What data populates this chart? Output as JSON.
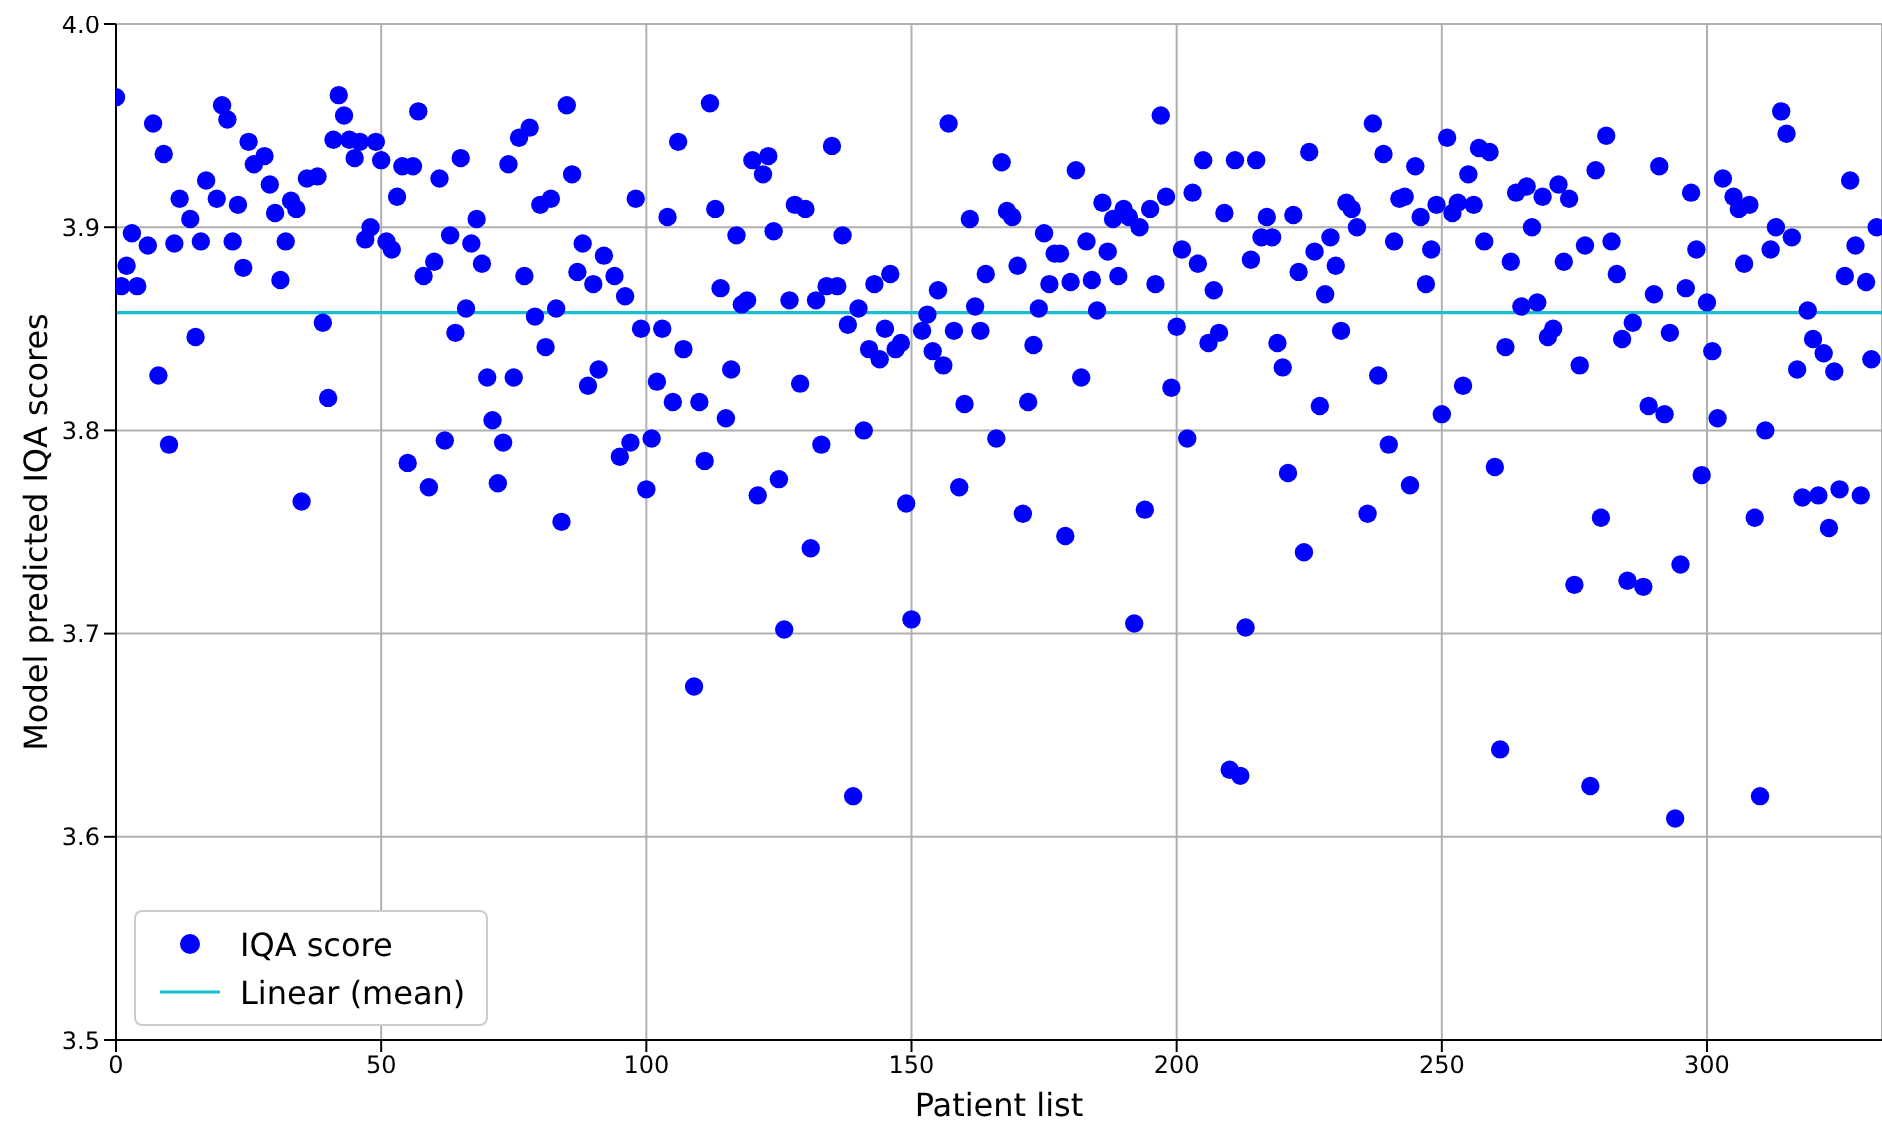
{
  "chart_data": {
    "type": "scatter",
    "xlabel": "Patient list",
    "ylabel": "Model predicted IQA scores",
    "xlim": [
      0,
      333
    ],
    "ylim": [
      3.5,
      4.0
    ],
    "xticks": [
      0,
      50,
      100,
      150,
      200,
      250,
      300
    ],
    "yticks": [
      3.5,
      3.6,
      3.7,
      3.8,
      3.9,
      {
        "value": 4,
        "label": "4.0"
      }
    ],
    "grid": true,
    "legend": "bottom left",
    "marker": "circle",
    "series": [
      {
        "name": "IQA score",
        "type": "scatter",
        "color": "#0000ff",
        "x": [
          0,
          1,
          2,
          3,
          4,
          6,
          7,
          8,
          9,
          10,
          11,
          12,
          14,
          15,
          16,
          17,
          19,
          20,
          21,
          22,
          23,
          24,
          25,
          26,
          28,
          29,
          30,
          31,
          32,
          33,
          34,
          35,
          36,
          38,
          39,
          40,
          41,
          42,
          43,
          44,
          45,
          46,
          47,
          48,
          49,
          50,
          51,
          52,
          53,
          54,
          55,
          56,
          57,
          58,
          59,
          60,
          61,
          62,
          63,
          64,
          65,
          66,
          67,
          68,
          69,
          70,
          71,
          72,
          73,
          74,
          75,
          76,
          77,
          78,
          79,
          80,
          81,
          82,
          83,
          84,
          85,
          86,
          87,
          88,
          89,
          90,
          91,
          92,
          94,
          95,
          96,
          97,
          98,
          99,
          100,
          101,
          102,
          103,
          104,
          105,
          106,
          107,
          109,
          110,
          111,
          112,
          113,
          114,
          115,
          116,
          117,
          118,
          119,
          120,
          121,
          122,
          123,
          124,
          125,
          126,
          127,
          128,
          129,
          130,
          131,
          132,
          133,
          134,
          135,
          136,
          137,
          138,
          139,
          140,
          141,
          142,
          143,
          144,
          145,
          146,
          147,
          148,
          149,
          150,
          152,
          153,
          154,
          155,
          156,
          157,
          158,
          159,
          160,
          161,
          162,
          163,
          164,
          166,
          167,
          168,
          169,
          170,
          171,
          172,
          173,
          174,
          175,
          176,
          177,
          178,
          179,
          180,
          181,
          182,
          183,
          184,
          185,
          186,
          187,
          188,
          189,
          190,
          191,
          192,
          193,
          194,
          195,
          196,
          197,
          198,
          199,
          200,
          201,
          202,
          203,
          204,
          205,
          206,
          207,
          208,
          209,
          210,
          211,
          212,
          213,
          214,
          215,
          216,
          217,
          218,
          219,
          220,
          221,
          222,
          223,
          224,
          225,
          226,
          227,
          228,
          229,
          230,
          231,
          232,
          233,
          234,
          236,
          237,
          238,
          239,
          240,
          241,
          242,
          243,
          244,
          245,
          246,
          247,
          248,
          249,
          250,
          251,
          252,
          253,
          254,
          255,
          256,
          257,
          258,
          259,
          260,
          261,
          262,
          263,
          264,
          265,
          266,
          267,
          268,
          269,
          270,
          271,
          272,
          273,
          274,
          275,
          276,
          277,
          278,
          279,
          280,
          281,
          282,
          283,
          284,
          285,
          286,
          288,
          289,
          290,
          291,
          292,
          293,
          294,
          295,
          296,
          297,
          298,
          299,
          300,
          301,
          302,
          303,
          305,
          306,
          307,
          308,
          309,
          310,
          311,
          312,
          313,
          314,
          315,
          316,
          317,
          318,
          319,
          320,
          321,
          322,
          323,
          324,
          325,
          326,
          327,
          328,
          329,
          330,
          331,
          332
        ],
        "values": [
          3.964,
          3.871,
          3.881,
          3.897,
          3.871,
          3.891,
          3.951,
          3.827,
          3.936,
          3.793,
          3.892,
          3.914,
          3.904,
          3.846,
          3.893,
          3.923,
          3.914,
          3.96,
          3.953,
          3.893,
          3.911,
          3.88,
          3.942,
          3.931,
          3.935,
          3.921,
          3.907,
          3.874,
          3.893,
          3.913,
          3.909,
          3.765,
          3.924,
          3.925,
          3.853,
          3.816,
          3.943,
          3.965,
          3.955,
          3.943,
          3.934,
          3.942,
          3.894,
          3.9,
          3.942,
          3.933,
          3.893,
          3.889,
          3.915,
          3.93,
          3.784,
          3.93,
          3.957,
          3.876,
          3.772,
          3.883,
          3.924,
          3.795,
          3.896,
          3.848,
          3.934,
          3.86,
          3.892,
          3.904,
          3.882,
          3.826,
          3.805,
          3.774,
          3.794,
          3.931,
          3.826,
          3.944,
          3.876,
          3.949,
          3.856,
          3.911,
          3.841,
          3.914,
          3.86,
          3.755,
          3.96,
          3.926,
          3.878,
          3.892,
          3.822,
          3.872,
          3.83,
          3.886,
          3.876,
          3.787,
          3.866,
          3.794,
          3.914,
          3.85,
          3.771,
          3.796,
          3.824,
          3.85,
          3.905,
          3.814,
          3.942,
          3.84,
          3.674,
          3.814,
          3.785,
          3.961,
          3.909,
          3.87,
          3.806,
          3.83,
          3.896,
          3.862,
          3.864,
          3.933,
          3.768,
          3.926,
          3.935,
          3.898,
          3.776,
          3.702,
          3.864,
          3.911,
          3.823,
          3.909,
          3.742,
          3.864,
          3.793,
          3.871,
          3.94,
          3.871,
          3.896,
          3.852,
          3.62,
          3.86,
          3.8,
          3.84,
          3.872,
          3.835,
          3.85,
          3.877,
          3.84,
          3.843,
          3.764,
          3.707,
          3.849,
          3.857,
          3.839,
          3.869,
          3.832,
          3.951,
          3.849,
          3.772,
          3.813,
          3.904,
          3.861,
          3.849,
          3.877,
          3.796,
          3.932,
          3.908,
          3.905,
          3.881,
          3.759,
          3.814,
          3.842,
          3.86,
          3.897,
          3.872,
          3.887,
          3.887,
          3.748,
          3.873,
          3.928,
          3.826,
          3.893,
          3.874,
          3.859,
          3.912,
          3.888,
          3.904,
          3.876,
          3.909,
          3.905,
          3.705,
          3.9,
          3.761,
          3.909,
          3.872,
          3.955,
          3.915,
          3.821,
          3.851,
          3.889,
          3.796,
          3.917,
          3.882,
          3.933,
          3.843,
          3.869,
          3.848,
          3.907,
          3.633,
          3.933,
          3.63,
          3.703,
          3.884,
          3.933,
          3.895,
          3.905,
          3.895,
          3.843,
          3.831,
          3.779,
          3.906,
          3.878,
          3.74,
          3.937,
          3.888,
          3.812,
          3.867,
          3.895,
          3.881,
          3.849,
          3.912,
          3.909,
          3.9,
          3.759,
          3.951,
          3.827,
          3.936,
          3.793,
          3.893,
          3.914,
          3.915,
          3.773,
          3.93,
          3.905,
          3.872,
          3.889,
          3.911,
          3.808,
          3.944,
          3.907,
          3.912,
          3.822,
          3.926,
          3.911,
          3.939,
          3.893,
          3.937,
          3.782,
          3.643,
          3.841,
          3.883,
          3.917,
          3.861,
          3.92,
          3.9,
          3.863,
          3.915,
          3.846,
          3.85,
          3.921,
          3.883,
          3.914,
          3.724,
          3.832,
          3.891,
          3.625,
          3.928,
          3.757,
          3.945,
          3.893,
          3.877,
          3.845,
          3.726,
          3.853,
          3.723,
          3.812,
          3.867,
          3.93,
          3.808,
          3.848,
          3.609,
          3.734,
          3.87,
          3.917,
          3.889,
          3.778,
          3.863,
          3.839,
          3.806,
          3.924,
          3.915,
          3.909,
          3.882,
          3.911,
          3.757,
          3.62,
          3.8,
          3.889,
          3.9,
          3.957,
          3.946,
          3.895,
          3.83,
          3.767,
          3.859,
          3.845,
          3.768,
          3.838,
          3.752,
          3.829,
          3.771,
          3.876,
          3.923,
          3.891,
          3.768,
          3.873,
          3.835,
          3.9
        ]
      },
      {
        "name": "Linear (mean)",
        "type": "line",
        "color": "#17becf",
        "x": [
          0,
          333
        ],
        "values": [
          3.858,
          3.858
        ],
        "marker": "none"
      }
    ]
  }
}
